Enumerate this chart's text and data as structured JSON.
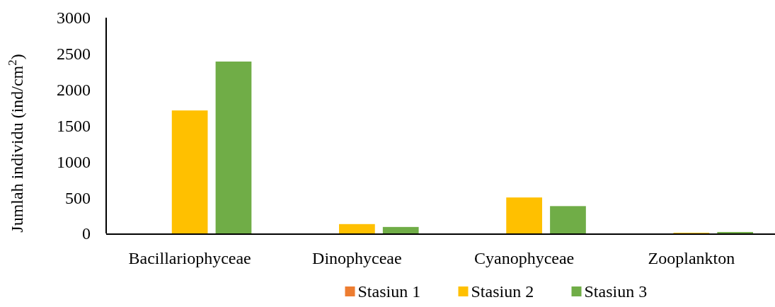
{
  "chart_data": {
    "type": "bar",
    "ylabel": "Jumlah individu (ind/cm$^{2}$)",
    "categories": [
      "Bacillariophyceae",
      "Dinophyceae",
      "Cyanophyceae",
      "Zooplankton"
    ],
    "series": [
      {
        "name": "Stasiun 1",
        "color": "#ed7d31",
        "values": [
          0,
          0,
          0,
          0
        ]
      },
      {
        "name": "Stasiun 2",
        "color": "#ffc000",
        "values": [
          1710,
          130,
          500,
          10
        ]
      },
      {
        "name": "Stasiun 3",
        "color": "#70ad47",
        "values": [
          2390,
          90,
          380,
          20
        ]
      }
    ],
    "ylim": [
      0,
      3000
    ],
    "yticks": [
      0,
      500,
      1000,
      1500,
      2000,
      2500,
      3000
    ],
    "grid": false,
    "legend": "bottom"
  }
}
